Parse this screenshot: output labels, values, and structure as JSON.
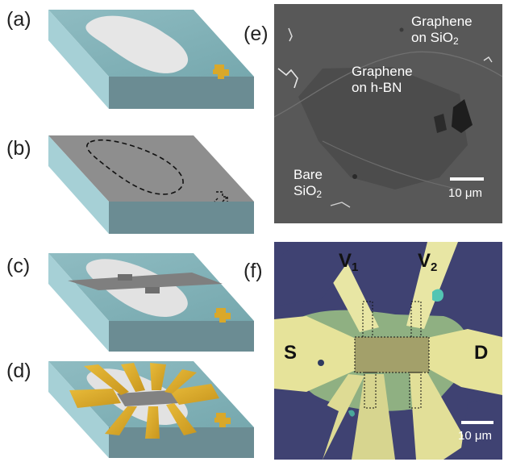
{
  "panels": {
    "a": {
      "label": "(a)"
    },
    "b": {
      "label": "(b)"
    },
    "c": {
      "label": "(c)"
    },
    "d": {
      "label": "(d)"
    },
    "e": {
      "label": "(e)",
      "annotations": {
        "graphene_sio2_line1": "Graphene",
        "graphene_sio2_line2": "on SiO",
        "graphene_sio2_sub": "2",
        "graphene_hbn_line1": "Graphene",
        "graphene_hbn_line2": "on h-BN",
        "bare_line1": "Bare",
        "bare_line2": "SiO",
        "bare_sub": "2"
      },
      "scale_bar": "10 μm"
    },
    "f": {
      "label": "(f)",
      "contacts": {
        "v1": "V",
        "v1_sub": "1",
        "v2": "V",
        "v2_sub": "2",
        "source": "S",
        "drain": "D"
      },
      "scale_bar": "10 μm"
    }
  },
  "colors": {
    "substrate_top": "#7fb1b7",
    "substrate_side_left": "#9bc8cf",
    "substrate_side_front": "#6b8c93",
    "hbn_flake": "#e8e8e8",
    "resist": "#8e8e8e",
    "gold": "#d9a82a",
    "graphene_strip": "#828282",
    "sem_background": "#5a5a5a",
    "optical_background": "#3c3f6e",
    "optical_contacts": "#e6e39a"
  }
}
